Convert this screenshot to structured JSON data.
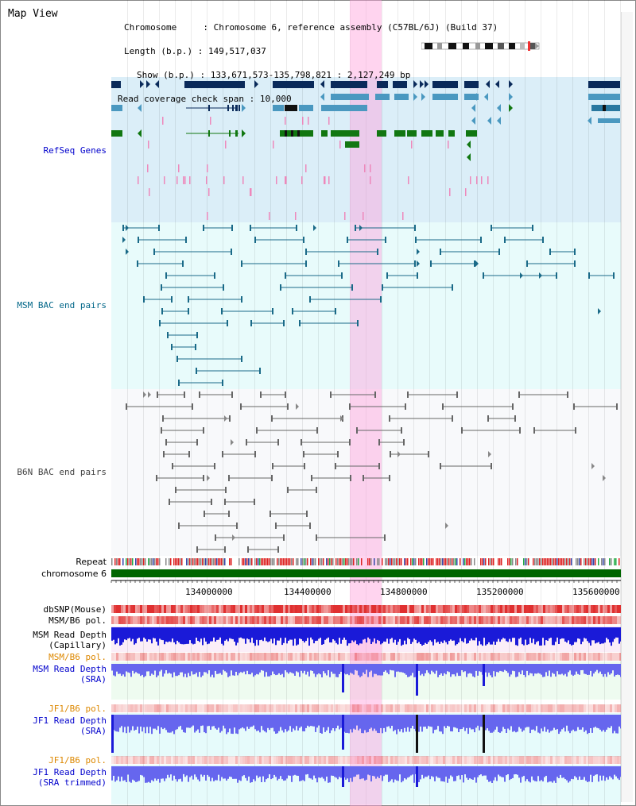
{
  "view": {
    "title": "Map View"
  },
  "info": {
    "chromosome_label": "Chromosome",
    "chromosome_value": "Chromosome 6, reference assembly (C57BL/6J) (Build 37)",
    "length_label": "Length (b.p.)",
    "length_value": "149,517,037",
    "show_label": "Show (b.p.)",
    "show_value": "133,671,573-135,798,821 : 2,127,249 bp",
    "coverage_label": "Read coverage check span",
    "coverage_value": "10,000"
  },
  "tracks": {
    "refseq": "RefSeq Genes",
    "msm_bac": "MSM BAC end pairs",
    "b6n_bac": "B6N BAC end pairs",
    "repeat": "Repeat",
    "chromosome": "chromosome 6",
    "dbsnp": "dbSNP(Mouse)",
    "msm_b6_pol_1": "MSM/B6 pol.",
    "msm_read_depth_cap_1": "MSM Read Depth",
    "msm_read_depth_cap_2": "(Capillary)",
    "msm_b6_pol_2": "MSM/B6 pol.",
    "msm_read_depth_sra_1": "MSM Read Depth",
    "msm_read_depth_sra_2": "(SRA)",
    "jf1_b6_pol_1": "JF1/B6 pol.",
    "jf1_read_depth_sra_1": "JF1 Read Depth",
    "jf1_read_depth_sra_2": "(SRA)",
    "jf1_b6_pol_2": "JF1/B6 pol.",
    "jf1_read_depth_trim_1": "JF1 Read Depth",
    "jf1_read_depth_trim_2": "(SRA trimmed)"
  },
  "axis": {
    "ticks": [
      "134000000",
      "134400000",
      "134800000",
      "135200000",
      "135600000"
    ]
  },
  "colors": {
    "highlight": "#ffa0dc",
    "refseq_dark": "#0a2a5a",
    "refseq_mid": "#4a98c0",
    "refseq_green": "#117711",
    "bac_teal": "#1a6a88",
    "bac_gray": "#666666",
    "chromosome_bar": "#006600",
    "depth_blue": "#2222dd"
  }
}
